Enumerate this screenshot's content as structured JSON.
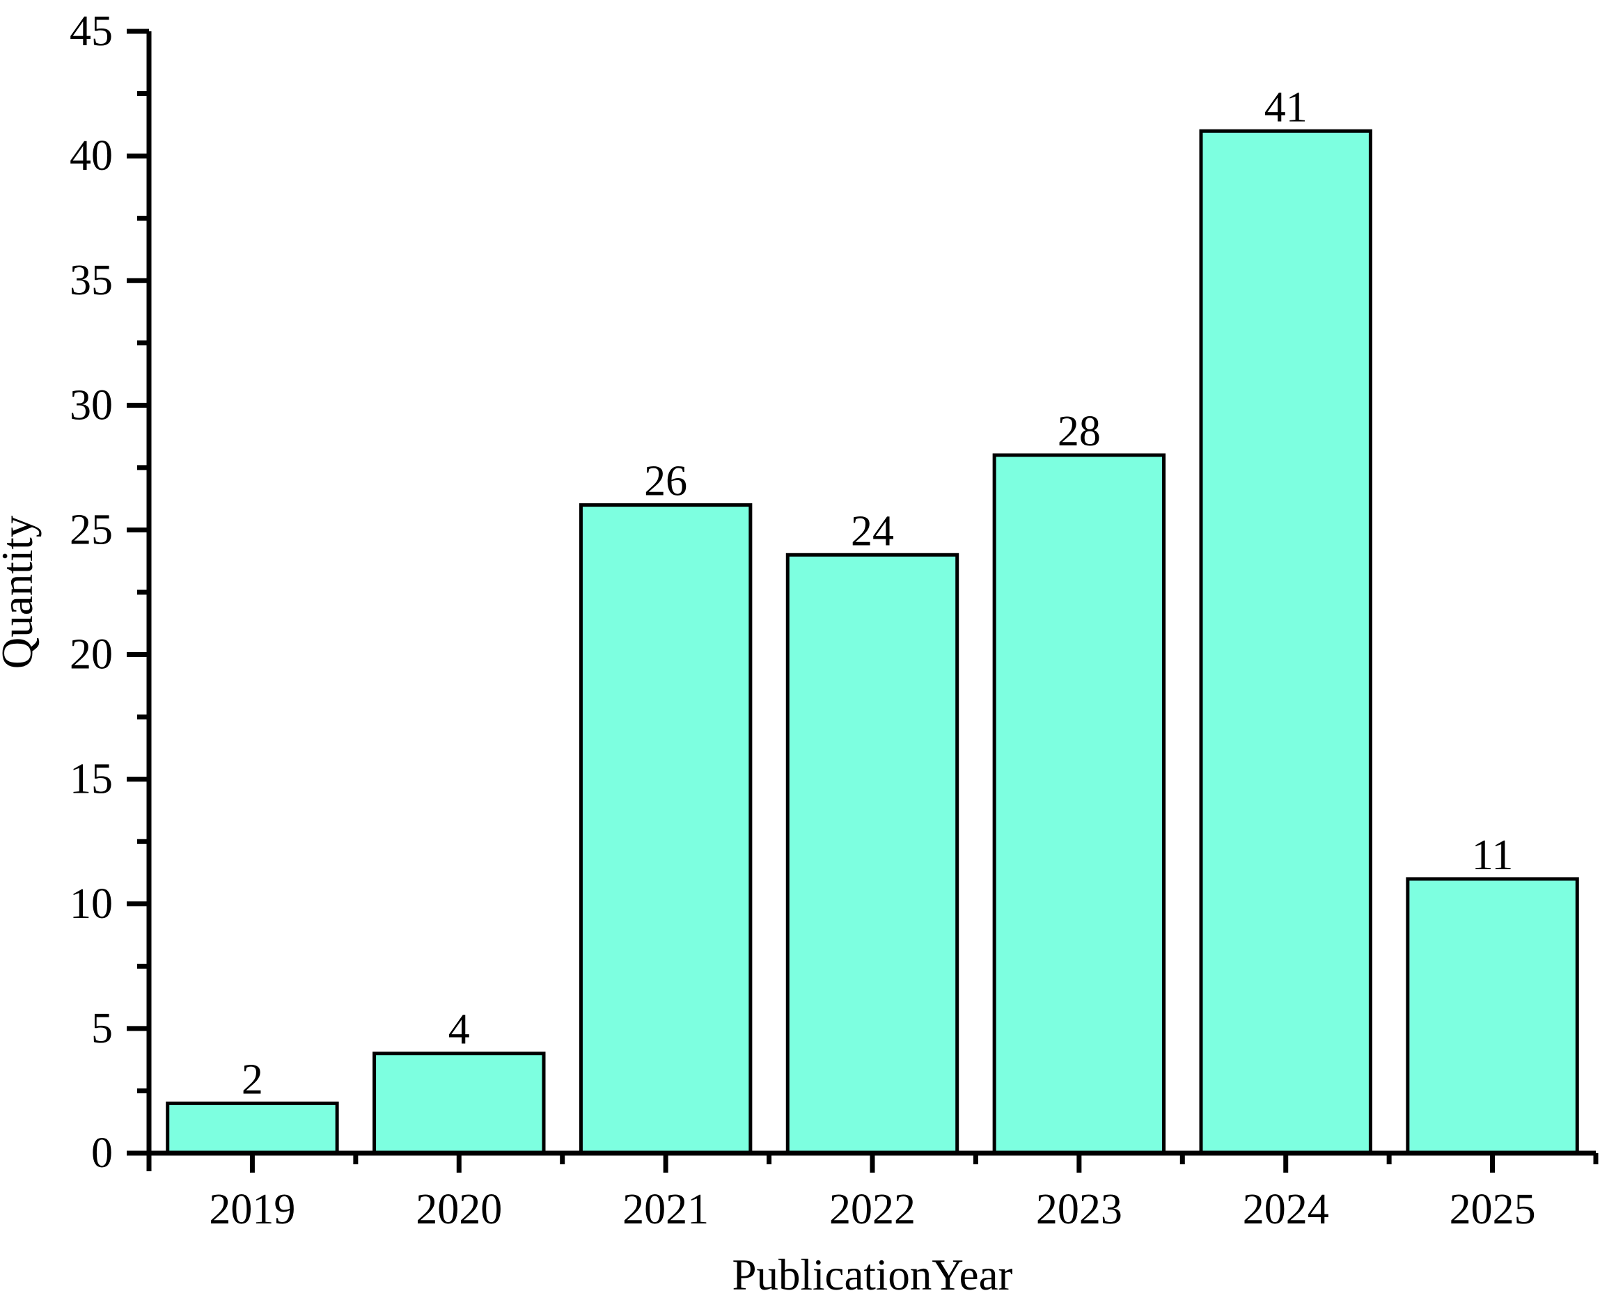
{
  "chart_data": {
    "type": "bar",
    "categories": [
      "2019",
      "2020",
      "2021",
      "2022",
      "2023",
      "2024",
      "2025"
    ],
    "values": [
      2,
      4,
      26,
      24,
      28,
      41,
      11
    ],
    "bar_labels": [
      "2",
      "4",
      "26",
      "24",
      "28",
      "41",
      "11"
    ],
    "title": "",
    "xlabel": "PublicationYear",
    "ylabel": "Quantity",
    "ylim": [
      0,
      45
    ],
    "y_major_step": 5,
    "y_minor_step": 2.5,
    "y_ticks": [
      "0",
      "5",
      "10",
      "15",
      "20",
      "25",
      "30",
      "35",
      "40",
      "45"
    ],
    "grid": false,
    "legend_position": "none",
    "colors": {
      "bar_fill": "#7DFFE0",
      "bar_stroke": "#000000",
      "axis": "#000000",
      "text": "#000000",
      "background": "#FFFFFF"
    }
  }
}
